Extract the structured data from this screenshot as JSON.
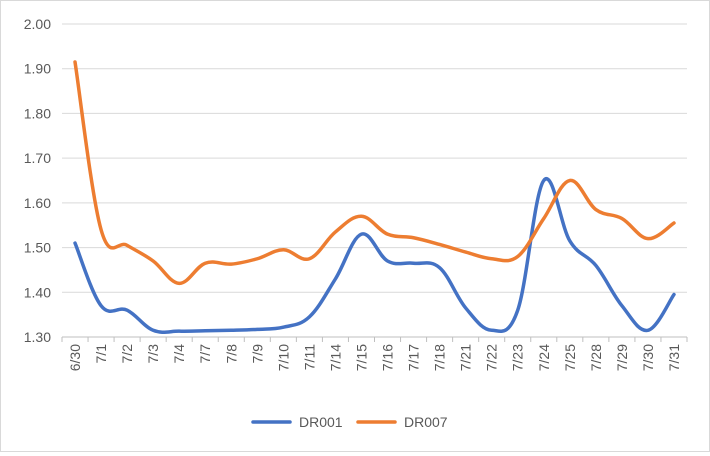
{
  "chart_data": {
    "type": "line",
    "categories": [
      "6/30",
      "7/1",
      "7/2",
      "7/3",
      "7/4",
      "7/7",
      "7/8",
      "7/9",
      "7/10",
      "7/11",
      "7/14",
      "7/15",
      "7/16",
      "7/17",
      "7/18",
      "7/21",
      "7/22",
      "7/23",
      "7/24",
      "7/25",
      "7/28",
      "7/29",
      "7/30",
      "7/31"
    ],
    "series": [
      {
        "name": "DR001",
        "color": "#4472c4",
        "values": [
          1.51,
          1.37,
          1.36,
          1.315,
          1.313,
          1.314,
          1.315,
          1.317,
          1.322,
          1.345,
          1.43,
          1.53,
          1.47,
          1.465,
          1.455,
          1.365,
          1.315,
          1.36,
          1.65,
          1.515,
          1.46,
          1.37,
          1.315,
          1.395
        ]
      },
      {
        "name": "DR007",
        "color": "#ed7d31",
        "values": [
          1.915,
          1.54,
          1.505,
          1.47,
          1.42,
          1.465,
          1.463,
          1.475,
          1.495,
          1.475,
          1.535,
          1.57,
          1.53,
          1.522,
          1.507,
          1.49,
          1.475,
          1.48,
          1.565,
          1.65,
          1.585,
          1.565,
          1.52,
          1.555
        ]
      }
    ],
    "ylim": [
      1.3,
      2.0
    ],
    "yticks": [
      "1.30",
      "1.40",
      "1.50",
      "1.60",
      "1.70",
      "1.80",
      "1.90",
      "2.00"
    ],
    "grid": true,
    "legend_position": "bottom"
  }
}
